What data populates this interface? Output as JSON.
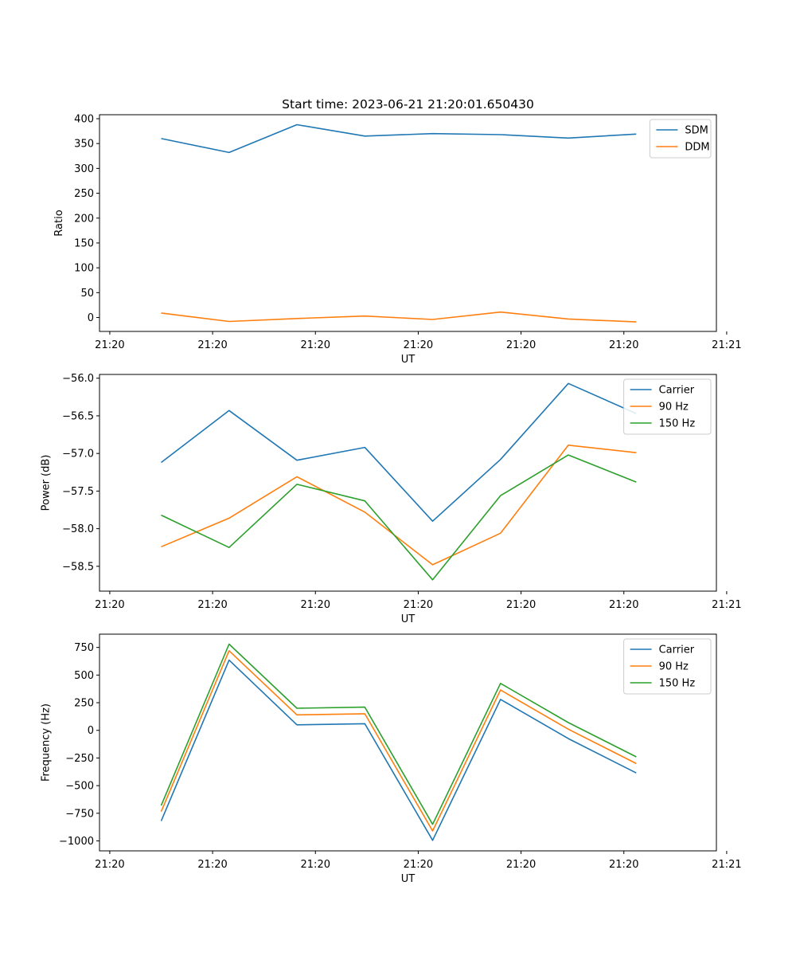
{
  "figure_title": "Start time: 2023-06-21 21:20:01.650430",
  "colors": {
    "blue": "#1f77b4",
    "orange": "#ff7f0e",
    "green": "#2ca02c",
    "axes": "#000000",
    "legend_border": "#cccccc"
  },
  "chart_data": [
    {
      "type": "line",
      "title": "Start time: 2023-06-21 21:20:01.650430",
      "xlabel": "UT",
      "ylabel": "Ratio",
      "xlim": [
        0,
        6
      ],
      "ylim": [
        -28,
        408
      ],
      "yticks": [
        0,
        50,
        100,
        150,
        200,
        250,
        300,
        350,
        400
      ],
      "xticks": [
        0.1,
        1.1,
        2.1,
        3.1,
        4.1,
        5.1,
        6.1
      ],
      "xticklabels": [
        "21:20",
        "21:20",
        "21:20",
        "21:20",
        "21:20",
        "21:20",
        "21:21"
      ],
      "x": [
        0.6,
        1.26,
        1.92,
        2.58,
        3.24,
        3.9,
        4.56,
        5.22
      ],
      "legend_loc": "upper right",
      "series": [
        {
          "name": "SDM",
          "color": "#1f77b4",
          "values": [
            360,
            332,
            388,
            365,
            370,
            368,
            361,
            369
          ]
        },
        {
          "name": "DDM",
          "color": "#ff7f0e",
          "values": [
            9,
            -8,
            -2,
            3,
            -4,
            11,
            -3,
            -9
          ]
        }
      ]
    },
    {
      "type": "line",
      "title": "",
      "xlabel": "UT",
      "ylabel": "Power (dB)",
      "xlim": [
        0,
        6
      ],
      "ylim": [
        -58.83,
        -55.95
      ],
      "yticks": [
        -58.5,
        -58.0,
        -57.5,
        -57.0,
        -56.5,
        -56.0
      ],
      "ytickformat": "1dp",
      "xticks": [
        0.1,
        1.1,
        2.1,
        3.1,
        4.1,
        5.1,
        6.1
      ],
      "xticklabels": [
        "21:20",
        "21:20",
        "21:20",
        "21:20",
        "21:20",
        "21:20",
        "21:21"
      ],
      "x": [
        0.6,
        1.26,
        1.92,
        2.58,
        3.24,
        3.9,
        4.56,
        5.22
      ],
      "legend_loc": "upper right",
      "series": [
        {
          "name": "Carrier",
          "color": "#1f77b4",
          "values": [
            -57.12,
            -56.43,
            -57.09,
            -56.92,
            -57.9,
            -57.08,
            -56.07,
            -56.47
          ]
        },
        {
          "name": "90 Hz",
          "color": "#ff7f0e",
          "values": [
            -58.24,
            -57.86,
            -57.31,
            -57.78,
            -58.48,
            -58.06,
            -56.89,
            -56.99
          ]
        },
        {
          "name": "150 Hz",
          "color": "#2ca02c",
          "values": [
            -57.82,
            -58.25,
            -57.41,
            -57.63,
            -58.68,
            -57.56,
            -57.02,
            -57.38
          ]
        }
      ]
    },
    {
      "type": "line",
      "title": "",
      "xlabel": "UT",
      "ylabel": "Frequency (Hz)",
      "xlim": [
        0,
        6
      ],
      "ylim": [
        -1090,
        870
      ],
      "yticks": [
        -1000,
        -750,
        -500,
        -250,
        0,
        250,
        500,
        750
      ],
      "xticks": [
        0.1,
        1.1,
        2.1,
        3.1,
        4.1,
        5.1,
        6.1
      ],
      "xticklabels": [
        "21:20",
        "21:20",
        "21:20",
        "21:20",
        "21:20",
        "21:20",
        "21:21"
      ],
      "x": [
        0.6,
        1.26,
        1.92,
        2.58,
        3.24,
        3.9,
        4.56,
        5.22
      ],
      "legend_loc": "upper right",
      "series": [
        {
          "name": "Carrier",
          "color": "#1f77b4",
          "values": [
            -820,
            635,
            50,
            60,
            -995,
            280,
            -75,
            -385
          ]
        },
        {
          "name": "90 Hz",
          "color": "#ff7f0e",
          "values": [
            -735,
            720,
            140,
            150,
            -910,
            365,
            10,
            -300
          ]
        },
        {
          "name": "150 Hz",
          "color": "#2ca02c",
          "values": [
            -680,
            780,
            200,
            210,
            -850,
            425,
            70,
            -240
          ]
        }
      ]
    }
  ]
}
